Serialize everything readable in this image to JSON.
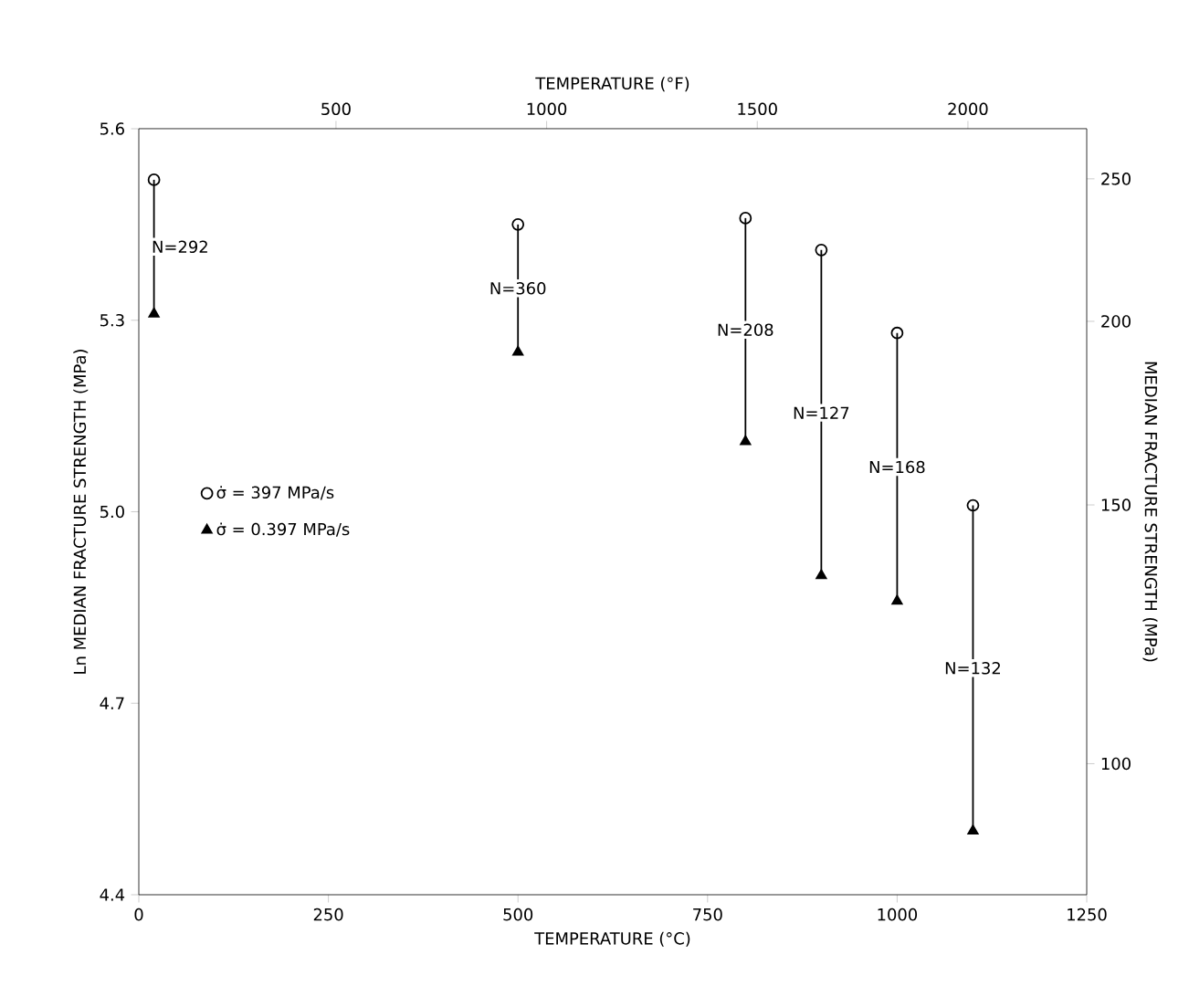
{
  "chart_data": {
    "type": "scatter",
    "xlabel": "TEMPERATURE (°C)",
    "ylabel": "Ln MEDIAN FRACTURE STRENGTH (MPa)",
    "y2label": "MEDIAN FRACTURE STRENGTH (MPa)",
    "x2label": "TEMPERATURE (°F)",
    "x": [
      20,
      500,
      800,
      900,
      1000,
      1100
    ],
    "series": [
      {
        "name": "σ̇ = 397 MPa/s",
        "color": "#000000",
        "marker": "circle",
        "values": [
          5.52,
          5.45,
          5.46,
          5.41,
          5.28,
          5.01
        ],
        "errors": [
          [
            5.31,
            5.52
          ],
          [
            5.25,
            5.45
          ],
          [
            5.11,
            5.46
          ],
          [
            4.9,
            5.41
          ],
          [
            4.86,
            5.28
          ],
          [
            4.5,
            5.01
          ]
        ]
      },
      {
        "name": "σ̇ = 0.397 MPa/s",
        "color": "#000000",
        "marker": "triangle",
        "values": [
          5.31,
          5.25,
          5.11,
          4.9,
          4.86,
          4.5
        ]
      }
    ],
    "annotations": [
      "N=292",
      "N=360",
      "N=208",
      "N=127",
      "N=168",
      "N=132"
    ],
    "xlim": [
      0,
      1250
    ],
    "xticks": [
      0,
      250,
      500,
      750,
      1000,
      1250
    ],
    "ylim": [
      4.4,
      5.6
    ],
    "yticks": [
      4.4,
      4.7,
      {
        "value": 5.0,
        "label": "5.0"
      },
      5.3,
      5.6
    ],
    "x2lim": [
      32,
      2282
    ],
    "x2ticks": [
      500,
      1000,
      1500,
      2000
    ],
    "y2lim": [
      81.45,
      270.43
    ],
    "y2ticks": [
      100,
      150,
      200,
      250
    ],
    "log": "y2",
    "legend": "left",
    "grid": false
  }
}
